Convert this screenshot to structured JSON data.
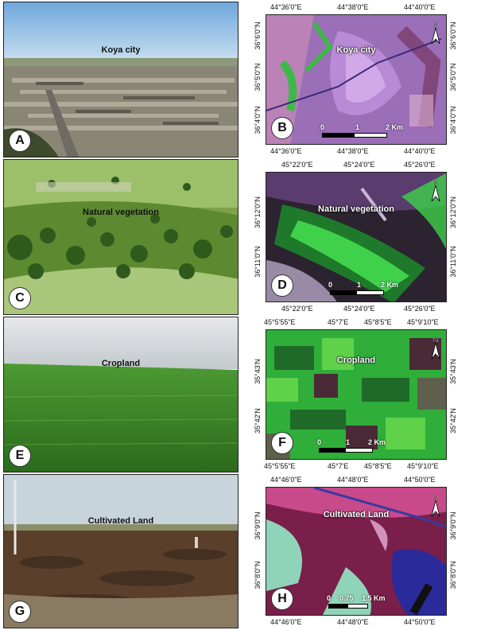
{
  "rows": [
    {
      "photo_letter": "A",
      "photo_caption": "Koya city",
      "map_letter": "B",
      "map_caption": "Koya city",
      "top_ticks": [
        "44°36'0\"E",
        "44°38'0\"E",
        "44°40'0\"E"
      ],
      "bottom_ticks": [
        "44°36'0\"E",
        "44°38'0\"E",
        "44°40'0\"E"
      ],
      "left_ticks": [
        "36°6'0\"N",
        "36°5'0\"N",
        "36°4'0\"N"
      ],
      "right_ticks": [
        "36°6'0\"N",
        "36°5'0\"N",
        "36°4'0\"N"
      ],
      "scale": [
        "0",
        "1",
        "2 Km"
      ],
      "map_colors": [
        "#b98ad6",
        "#8a5cc2",
        "#d2a9e8",
        "#3fb84a",
        "#7a3c6a"
      ],
      "photo_colors": [
        "#7fb1e0",
        "#9b9a8a",
        "#6b6a5e",
        "#4d5a3a"
      ]
    },
    {
      "photo_letter": "C",
      "photo_caption": "Natural vegetation",
      "map_letter": "D",
      "map_caption": "Natural vegetation",
      "top_ticks": [
        "45°22'0\"E",
        "45°24'0\"E",
        "45°26'0\"E"
      ],
      "bottom_ticks": [
        "45°22'0\"E",
        "45°24'0\"E",
        "45°26'0\"E"
      ],
      "left_ticks": [
        "36°12'0\"N",
        "36°11'0\"N"
      ],
      "right_ticks": [
        "36°12'0\"N",
        "36°11'0\"N"
      ],
      "scale": [
        "0",
        "1",
        "2 Km"
      ],
      "map_colors": [
        "#1e7a2a",
        "#3fd14a",
        "#5a3c6e",
        "#2b2330",
        "#c9b6d8"
      ],
      "photo_colors": [
        "#9cbf6a",
        "#4f7d2c",
        "#2f5a1c",
        "#a9c77a"
      ]
    },
    {
      "photo_letter": "E",
      "photo_caption": "Cropland",
      "map_letter": "F",
      "map_caption": "Cropland",
      "top_ticks": [
        "45°5'55\"E",
        "45°7'E",
        "45°8'5\"E",
        "45°9'10\"E"
      ],
      "bottom_ticks": [
        "45°5'55\"E",
        "45°7'E",
        "45°8'5\"E",
        "45°9'10\"E"
      ],
      "left_ticks": [
        "35°43'N",
        "35°42'N"
      ],
      "right_ticks": [
        "35°43'N",
        "35°42'N"
      ],
      "scale": [
        "0",
        "1",
        "2 Km"
      ],
      "map_colors": [
        "#2fae3a",
        "#1f6a28",
        "#5fd24a",
        "#4a2a36",
        "#6b4b54"
      ],
      "photo_colors": [
        "#d8dbe0",
        "#b7bfc3",
        "#3f8a2a",
        "#2a6a1c"
      ]
    },
    {
      "photo_letter": "G",
      "photo_caption": "Cultivated Land",
      "map_letter": "H",
      "map_caption": "Cultivated Land",
      "top_ticks": [
        "44°46'0\"E",
        "44°48'0\"E",
        "44°50'0\"E"
      ],
      "bottom_ticks": [
        "44°46'0\"E",
        "44°48'0\"E",
        "44°50'0\"E"
      ],
      "left_ticks": [
        "36°9'0\"N",
        "36°8'0\"N"
      ],
      "right_ticks": [
        "36°9'0\"N",
        "36°8'0\"N"
      ],
      "scale": [
        "0",
        "0.75",
        "1.5 Km"
      ],
      "map_colors": [
        "#7a1e4a",
        "#c84a8a",
        "#8fd4b8",
        "#2a2a9a",
        "#e6b0d8"
      ],
      "photo_colors": [
        "#c7d4dc",
        "#8a7a62",
        "#5a3f2a",
        "#3a2a1c"
      ]
    }
  ],
  "north_label": "N"
}
